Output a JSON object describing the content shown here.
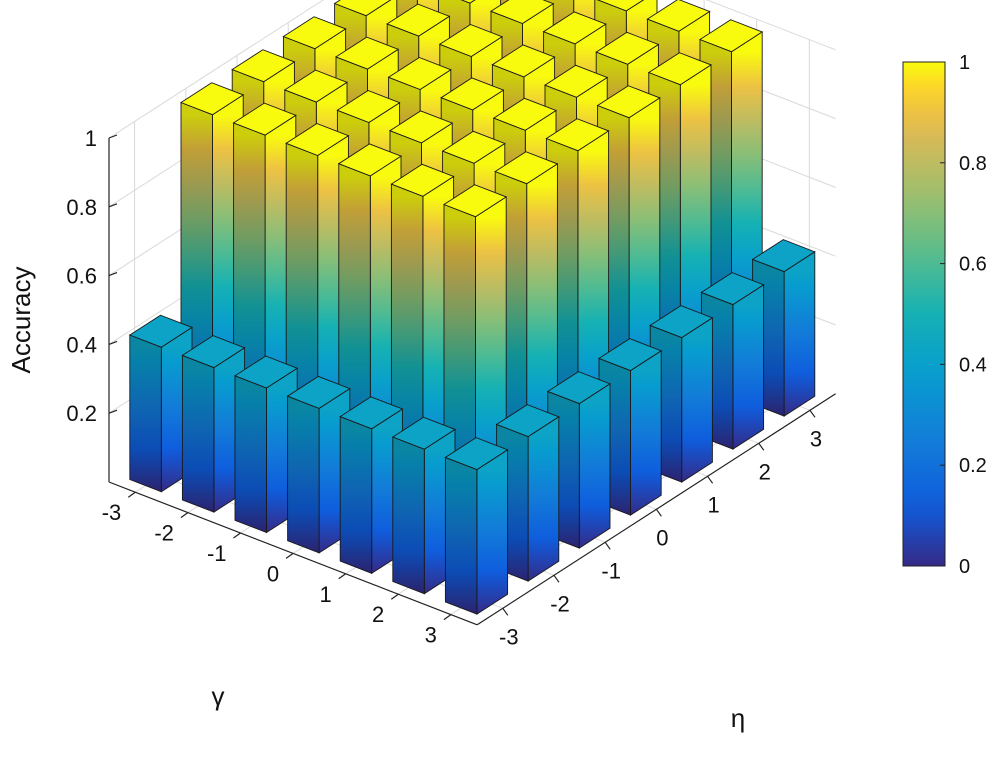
{
  "chart_data": {
    "type": "bar3d",
    "title": "",
    "zlabel": "Accuracy",
    "xlabel": "η",
    "ylabel": "γ",
    "eta_ticks": [
      -3,
      -2,
      -1,
      0,
      1,
      2,
      3
    ],
    "gamma_ticks": [
      -3,
      -2,
      -1,
      0,
      1,
      2,
      3
    ],
    "z_ticks": [
      0.2,
      0.4,
      0.6,
      0.8,
      1
    ],
    "zlim": [
      0,
      1
    ],
    "colorbar": {
      "ticks": [
        0,
        0.2,
        0.4,
        0.6,
        0.8,
        1
      ],
      "range": [
        0,
        1
      ],
      "colormap": "parula"
    },
    "grid": true,
    "rows_gamma": [
      -3,
      -2,
      -1,
      0,
      1,
      2,
      3
    ],
    "cols_eta": [
      -3,
      -2,
      -1,
      0,
      1,
      2,
      3
    ],
    "values": [
      [
        0.42,
        1.0,
        1.0,
        1.0,
        1.0,
        1.0,
        1.0
      ],
      [
        0.42,
        1.0,
        1.0,
        1.0,
        1.0,
        1.0,
        1.0
      ],
      [
        0.42,
        1.0,
        1.0,
        1.0,
        1.0,
        1.0,
        1.0
      ],
      [
        0.42,
        1.0,
        1.0,
        1.0,
        1.0,
        1.0,
        1.0
      ],
      [
        0.42,
        1.0,
        1.0,
        1.0,
        1.0,
        1.0,
        1.0
      ],
      [
        0.42,
        1.0,
        1.0,
        1.0,
        1.0,
        1.0,
        1.0
      ],
      [
        0.42,
        0.42,
        0.42,
        0.42,
        0.42,
        0.42,
        0.42
      ]
    ]
  },
  "labels": {
    "zlabel": "Accuracy",
    "xlabel": "η",
    "ylabel": "γ"
  }
}
